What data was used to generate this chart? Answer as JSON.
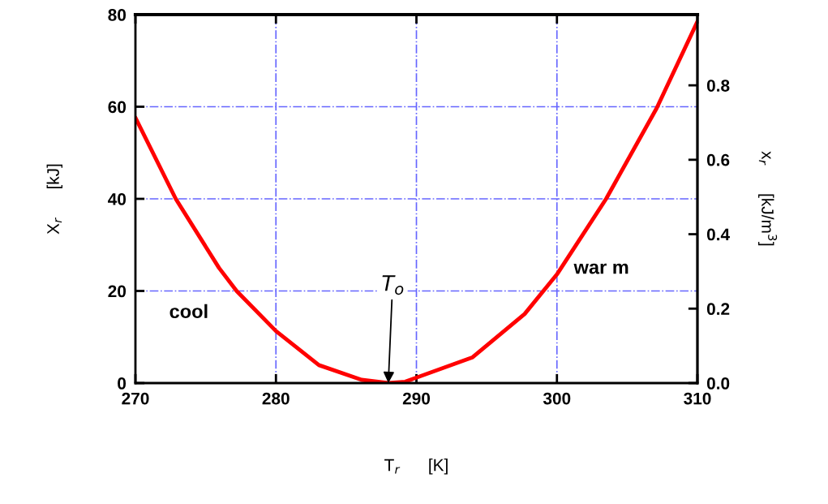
{
  "chart_data": {
    "type": "line",
    "xlabel": "T$_{r}$      [K]",
    "ylabel": "X$_{r}$      [kJ]",
    "y2label": "x$_{r}$      [kJ/m$^{3}$]",
    "x": [
      270,
      272.87,
      275.95,
      277.2,
      280,
      283.06,
      286.1,
      288,
      289.2,
      294.0,
      297.7,
      300,
      303.5,
      307.1,
      310
    ],
    "series": [
      {
        "color": "#ff0000",
        "values": [
          57.6,
          40,
          25.0,
          20,
          11.3,
          3.9,
          0.7,
          0,
          0.3,
          5.6,
          15.0,
          23.6,
          40,
          59.7,
          78.5
        ]
      }
    ],
    "xlim": [
      270,
      310
    ],
    "xticks": [
      270,
      280,
      290,
      300,
      310
    ],
    "ylim": [
      0,
      80
    ],
    "yticks": [
      0,
      20,
      40,
      60,
      80
    ],
    "y2lim": [
      0,
      0.99
    ],
    "y2ticks": [
      {
        "value": 0,
        "label": "0.0"
      },
      0.2,
      0.4,
      0.6,
      0.8
    ],
    "grid": true,
    "marker": "none",
    "line_style": "solid",
    "annotations": [
      "cool",
      "war m",
      {
        "text": "T$_{o}$",
        "x": 288,
        "y": 0
      }
    ]
  }
}
